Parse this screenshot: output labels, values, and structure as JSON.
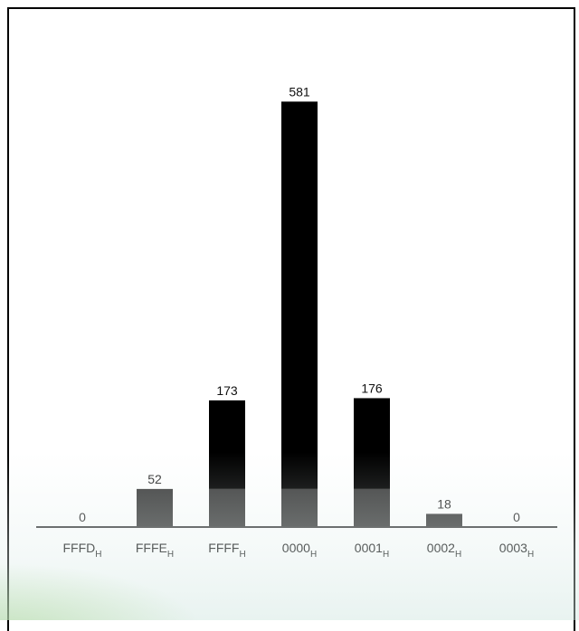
{
  "chart_data": {
    "type": "bar",
    "title": "",
    "xlabel": "",
    "ylabel": "",
    "categories": [
      {
        "base": "FFFD",
        "sub": "H"
      },
      {
        "base": "FFFE",
        "sub": "H"
      },
      {
        "base": "FFFF",
        "sub": "H"
      },
      {
        "base": "0000",
        "sub": "H"
      },
      {
        "base": "0001",
        "sub": "H"
      },
      {
        "base": "0002",
        "sub": "H"
      },
      {
        "base": "0003",
        "sub": "H"
      }
    ],
    "values": [
      0,
      52,
      173,
      581,
      176,
      18,
      0
    ],
    "data_labels": [
      "0",
      "52",
      "173",
      "581",
      "176",
      "18",
      "0"
    ],
    "ylim": [
      0,
      640
    ],
    "grid": false,
    "legend": "none",
    "colors": {
      "bar_top": "#000000",
      "bar_lower": "#404040",
      "axis": "#444444"
    },
    "band_split_value": 52
  }
}
